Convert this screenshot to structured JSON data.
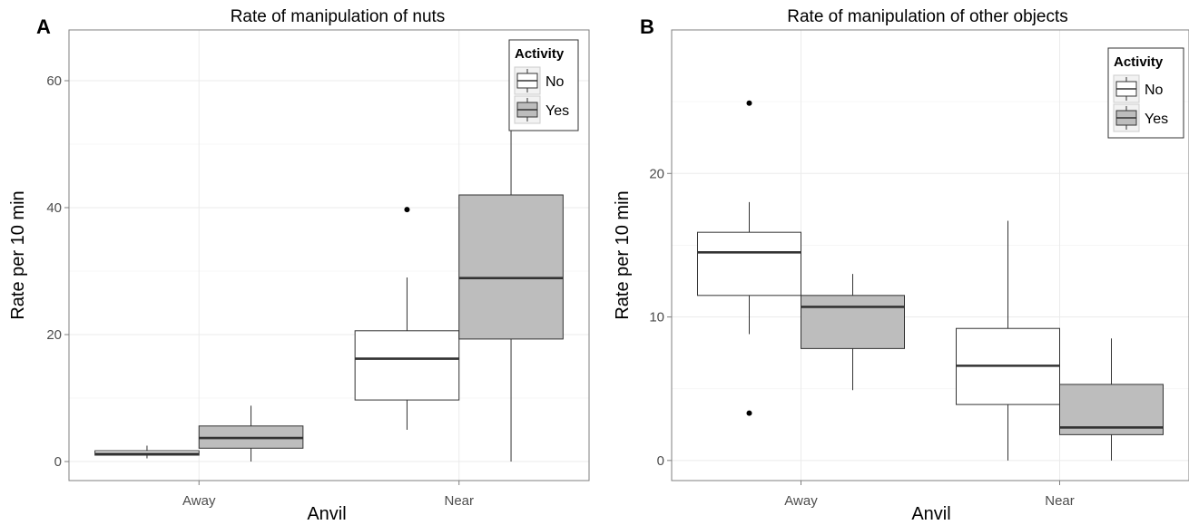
{
  "colors": {
    "no_fill": "#ffffff",
    "yes_fill": "#bdbdbd",
    "line": "#333333"
  },
  "chart_data": [
    {
      "type": "boxplot",
      "panel_label": "A",
      "title": "Rate of manipulation of nuts",
      "xlabel": "Anvil",
      "ylabel": "Rate per 10 min",
      "categories": [
        "Away",
        "Near"
      ],
      "ylim": [
        -3,
        68
      ],
      "yticks": [
        0,
        20,
        40,
        60
      ],
      "grid": true,
      "legend": {
        "title": "Activity",
        "placement": "top-right",
        "entries": [
          "No",
          "Yes"
        ]
      },
      "series": [
        {
          "name": "No",
          "boxes": [
            {
              "min": 0.5,
              "q1": 1.0,
              "median": 1.2,
              "q3": 1.7,
              "max": 2.5,
              "outliers": []
            },
            {
              "min": 5.0,
              "q1": 9.7,
              "median": 16.2,
              "q3": 20.6,
              "max": 29.0,
              "outliers": [
                39.7
              ]
            }
          ]
        },
        {
          "name": "Yes",
          "boxes": [
            {
              "min": 0.0,
              "q1": 2.1,
              "median": 3.7,
              "q3": 5.6,
              "max": 8.8,
              "outliers": []
            },
            {
              "min": 0.0,
              "q1": 19.3,
              "median": 28.9,
              "q3": 42.0,
              "max": 65.0,
              "outliers": []
            }
          ]
        }
      ]
    },
    {
      "type": "boxplot",
      "panel_label": "B",
      "title": "Rate of manipulation of other objects",
      "xlabel": "Anvil",
      "ylabel": "Rate per 10 min",
      "categories": [
        "Away",
        "Near"
      ],
      "ylim": [
        -1.4,
        30
      ],
      "yticks": [
        0,
        10,
        20
      ],
      "grid": true,
      "legend": {
        "title": "Activity",
        "placement": "top-right",
        "entries": [
          "No",
          "Yes"
        ]
      },
      "series": [
        {
          "name": "No",
          "boxes": [
            {
              "min": 8.8,
              "q1": 11.5,
              "median": 14.5,
              "q3": 15.9,
              "max": 18.0,
              "outliers": [
                3.3,
                24.9
              ]
            },
            {
              "min": 0.0,
              "q1": 3.9,
              "median": 6.6,
              "q3": 9.2,
              "max": 16.7,
              "outliers": []
            }
          ]
        },
        {
          "name": "Yes",
          "boxes": [
            {
              "min": 4.9,
              "q1": 7.8,
              "median": 10.7,
              "q3": 11.5,
              "max": 13.0,
              "outliers": []
            },
            {
              "min": 0.0,
              "q1": 1.8,
              "median": 2.3,
              "q3": 5.3,
              "max": 8.5,
              "outliers": [
                28.4
              ]
            }
          ]
        }
      ]
    }
  ]
}
